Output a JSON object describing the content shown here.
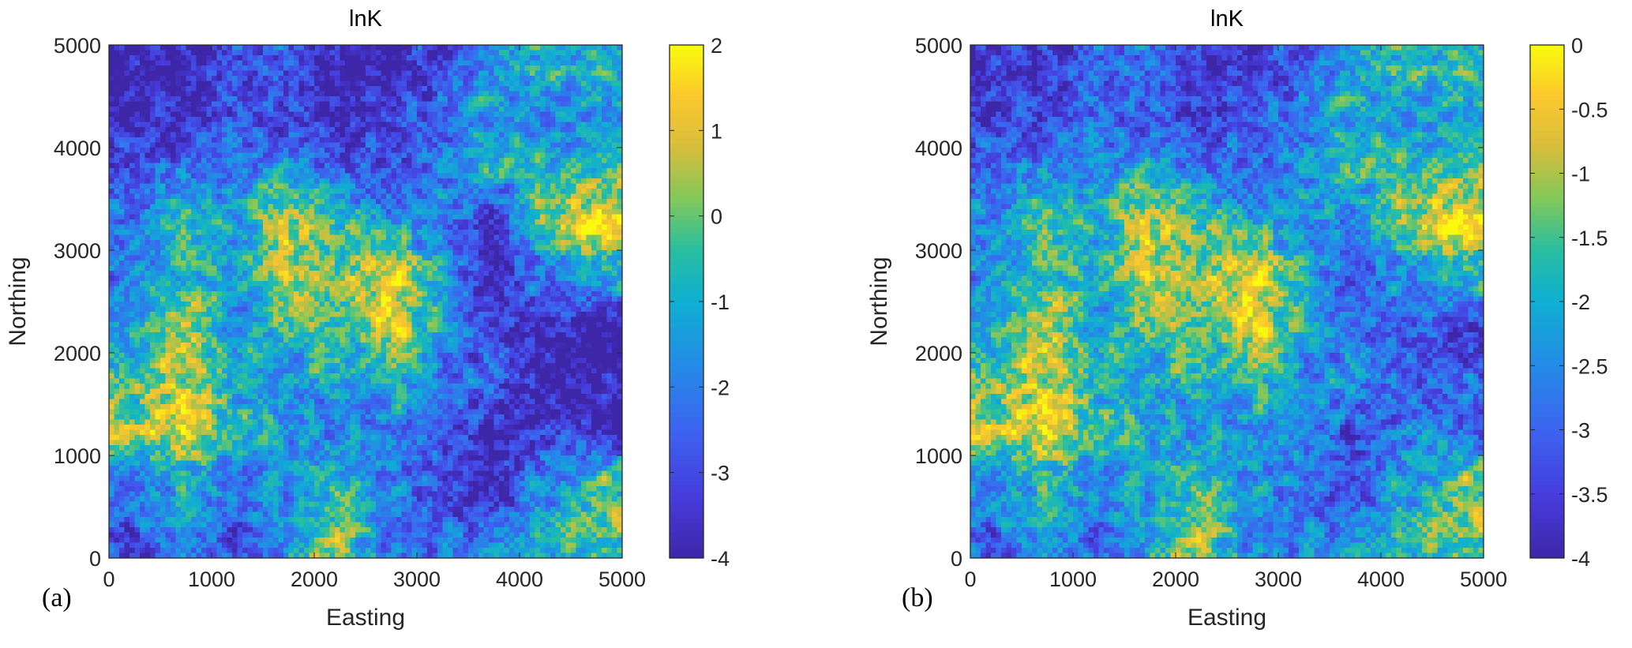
{
  "chart_data": [
    {
      "type": "heatmap",
      "panel_label": "(a)",
      "title": "lnK",
      "xlabel": "Easting",
      "ylabel": "Northing",
      "xlim": [
        0,
        5000
      ],
      "ylim": [
        0,
        5000
      ],
      "xticks": [
        "0",
        "1000",
        "2000",
        "3000",
        "4000",
        "5000"
      ],
      "yticks": [
        "0",
        "1000",
        "2000",
        "3000",
        "4000",
        "5000"
      ],
      "colorbar": {
        "range": [
          -4,
          2
        ],
        "ticks": [
          "2",
          "1",
          "0",
          "-1",
          "-2",
          "-3",
          "-4"
        ]
      },
      "colormap": "parula",
      "grid_note": "approximate coarse field, rows from Northing 5000 down to 0, columns Easting 0 to 5000",
      "coarse_values": [
        [
          -4,
          -4,
          -3,
          -3,
          -4,
          -4,
          -2.5,
          -1.5,
          -1,
          -1
        ],
        [
          -4,
          -4,
          -2.5,
          -3,
          -4,
          -3,
          -2.5,
          -1.5,
          -2,
          -1.5
        ],
        [
          -3,
          -2,
          -2,
          -1,
          -2.5,
          -3,
          -2,
          -1,
          -0.5,
          -0.5
        ],
        [
          -2,
          -0.5,
          -1,
          0.5,
          -0.5,
          -1.5,
          -2,
          -4,
          0.5,
          1.5
        ],
        [
          -2,
          -0.5,
          -1.5,
          1,
          0,
          1.5,
          -1,
          -4,
          -2.5,
          -1
        ],
        [
          -1,
          0.5,
          -1.5,
          -0.5,
          -0.5,
          1,
          -1.5,
          -3,
          -4,
          -4
        ],
        [
          -0.5,
          1,
          -1,
          -1.5,
          -1,
          -1,
          -2,
          -2.5,
          -4,
          -4
        ],
        [
          0.5,
          1.5,
          -0.5,
          -1.5,
          -2,
          -2,
          -3,
          -4,
          -3.5,
          -4
        ],
        [
          -2,
          -1,
          -2,
          -1.5,
          -0.5,
          -2,
          -3,
          -4,
          -2,
          -0.5
        ],
        [
          -3,
          -2,
          -3,
          -1.5,
          0.5,
          -2,
          -2.5,
          -2,
          -1,
          -0.5
        ]
      ]
    },
    {
      "type": "heatmap",
      "panel_label": "(b)",
      "title": "lnK",
      "xlabel": "Easting",
      "ylabel": "Northing",
      "xlim": [
        0,
        5000
      ],
      "ylim": [
        0,
        5000
      ],
      "xticks": [
        "0",
        "1000",
        "2000",
        "3000",
        "4000",
        "5000"
      ],
      "yticks": [
        "0",
        "1000",
        "2000",
        "3000",
        "4000",
        "5000"
      ],
      "colorbar": {
        "range": [
          -4,
          0
        ],
        "ticks": [
          "0",
          "-0.5",
          "-1",
          "-1.5",
          "-2",
          "-2.5",
          "-3",
          "-3.5",
          "-4"
        ]
      },
      "colormap": "parula",
      "grid_note": "approximate coarse field, rows from Northing 5000 down to 0, columns Easting 0 to 5000",
      "coarse_values": [
        [
          -3.6,
          -3.6,
          -3,
          -3,
          -3.6,
          -3.6,
          -2.7,
          -2.1,
          -1.8,
          -1.8
        ],
        [
          -3.6,
          -3.6,
          -2.7,
          -3,
          -3.6,
          -3,
          -2.7,
          -2.1,
          -2.4,
          -2.1
        ],
        [
          -3,
          -2.4,
          -2.4,
          -1.8,
          -2.7,
          -3,
          -2.4,
          -1.8,
          -1.5,
          -1.5
        ],
        [
          -2.4,
          -1.5,
          -1.8,
          -0.9,
          -1.5,
          -2.1,
          -2.4,
          -2.7,
          -0.9,
          -0.3
        ],
        [
          -2.4,
          -1.5,
          -2.1,
          -0.6,
          -1.2,
          -0.3,
          -1.8,
          -3.3,
          -2.7,
          -1.8
        ],
        [
          -1.8,
          -0.9,
          -2.1,
          -1.5,
          -1.5,
          -0.6,
          -2.1,
          -2.7,
          -3.3,
          -3.3
        ],
        [
          -1.5,
          -0.6,
          -1.8,
          -2.1,
          -1.8,
          -1.8,
          -2.4,
          -2.4,
          -3,
          -3
        ],
        [
          -0.9,
          -0.3,
          -1.5,
          -2.1,
          -2.4,
          -2.4,
          -2.7,
          -3.3,
          -2.7,
          -3
        ],
        [
          -2.4,
          -1.8,
          -2.4,
          -2.1,
          -1.5,
          -2.4,
          -2.7,
          -3.3,
          -2.4,
          -1.5
        ],
        [
          -3,
          -2.4,
          -3,
          -2.1,
          -0.9,
          -2.4,
          -2.7,
          -2.4,
          -1.8,
          -1.5
        ]
      ]
    }
  ]
}
